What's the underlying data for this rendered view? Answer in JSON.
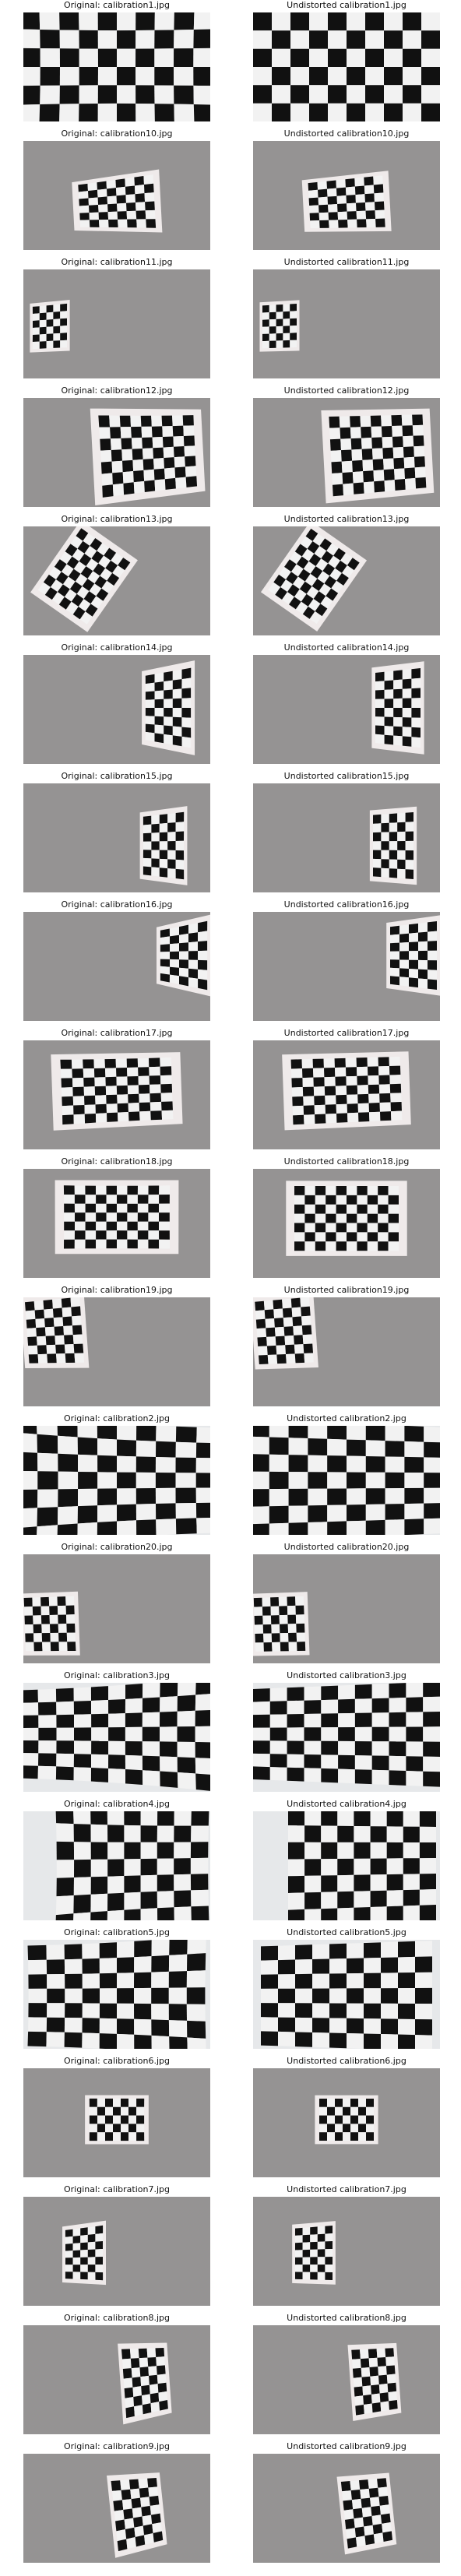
{
  "rows": [
    {
      "original": "Original: calibration1.jpg",
      "undistorted": "Undistorted calibration1.jpg"
    },
    {
      "original": "Original: calibration10.jpg",
      "undistorted": "Undistorted calibration10.jpg"
    },
    {
      "original": "Original: calibration11.jpg",
      "undistorted": "Undistorted calibration11.jpg"
    },
    {
      "original": "Original: calibration12.jpg",
      "undistorted": "Undistorted calibration12.jpg"
    },
    {
      "original": "Original: calibration13.jpg",
      "undistorted": "Undistorted calibration13.jpg"
    },
    {
      "original": "Original: calibration14.jpg",
      "undistorted": "Undistorted calibration14.jpg"
    },
    {
      "original": "Original: calibration15.jpg",
      "undistorted": "Undistorted calibration15.jpg"
    },
    {
      "original": "Original: calibration16.jpg",
      "undistorted": "Undistorted calibration16.jpg"
    },
    {
      "original": "Original: calibration17.jpg",
      "undistorted": "Undistorted calibration17.jpg"
    },
    {
      "original": "Original: calibration18.jpg",
      "undistorted": "Undistorted calibration18.jpg"
    },
    {
      "original": "Original: calibration19.jpg",
      "undistorted": "Undistorted calibration19.jpg"
    },
    {
      "original": "Original: calibration2.jpg",
      "undistorted": "Undistorted calibration2.jpg"
    },
    {
      "original": "Original: calibration20.jpg",
      "undistorted": "Undistorted calibration20.jpg"
    },
    {
      "original": "Original: calibration3.jpg",
      "undistorted": "Undistorted calibration3.jpg"
    },
    {
      "original": "Original: calibration4.jpg",
      "undistorted": "Undistorted calibration4.jpg"
    },
    {
      "original": "Original: calibration5.jpg",
      "undistorted": "Undistorted calibration5.jpg"
    },
    {
      "original": "Original: calibration6.jpg",
      "undistorted": "Undistorted calibration6.jpg"
    },
    {
      "original": "Original: calibration7.jpg",
      "undistorted": "Undistorted calibration7.jpg"
    },
    {
      "original": "Original: calibration8.jpg",
      "undistorted": "Undistorted calibration8.jpg"
    },
    {
      "original": "Original: calibration9.jpg",
      "undistorted": "Undistorted calibration9.jpg"
    }
  ],
  "colors": {
    "background_light": "#e6e8ea",
    "background_gray": "#8f8d8d",
    "square_dark": "#111111",
    "square_light": "#f2f2f2",
    "board_border": "#efeaea"
  }
}
